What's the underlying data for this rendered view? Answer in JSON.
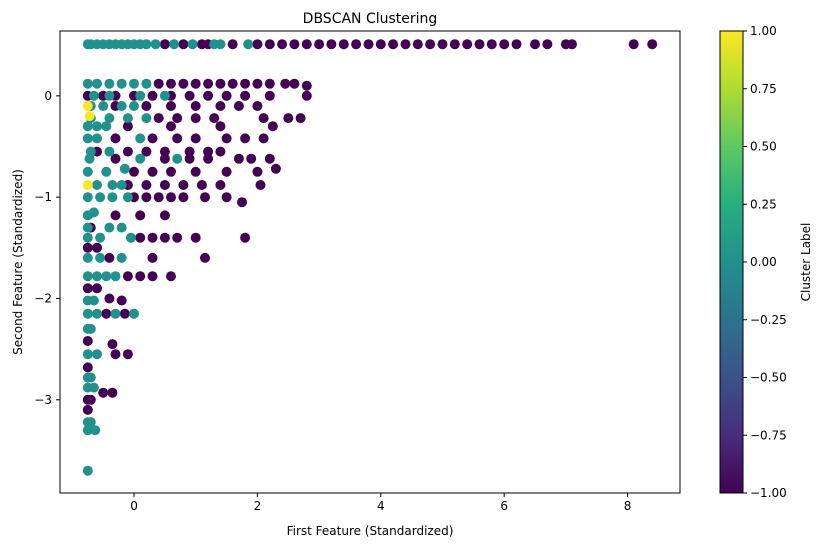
{
  "chart_data": {
    "type": "scatter",
    "title": "DBSCAN Clustering",
    "xlabel": "First Feature (Standardized)",
    "ylabel": "Second Feature (Standardized)",
    "xlim": [
      -1.2,
      8.85
    ],
    "ylim": [
      -3.92,
      0.64
    ],
    "xticks": [
      0,
      2,
      4,
      6,
      8
    ],
    "yticks": [
      0,
      -1,
      -2,
      -3
    ],
    "grid": false,
    "colorbar": {
      "label": "Cluster Label",
      "colormap": "viridis",
      "range": [
        -1.0,
        1.0
      ],
      "ticks": [
        1.0,
        0.75,
        0.5,
        0.25,
        0.0,
        -0.25,
        -0.5,
        -0.75,
        -1.0
      ],
      "tick_labels": [
        "1.00",
        "0.75",
        "0.50",
        "0.25",
        "0.00",
        "−0.25",
        "−0.50",
        "−0.75",
        "−1.00"
      ]
    },
    "colors": {
      "-1": "#440154",
      "0": "#21918c",
      "1": "#fde725"
    },
    "points": [
      [
        -0.75,
        0.51,
        0
      ],
      [
        -0.7,
        0.51,
        0
      ],
      [
        -0.6,
        0.51,
        0
      ],
      [
        -0.5,
        0.51,
        0
      ],
      [
        -0.4,
        0.51,
        0
      ],
      [
        -0.3,
        0.51,
        0
      ],
      [
        -0.2,
        0.51,
        0
      ],
      [
        -0.1,
        0.51,
        0
      ],
      [
        0.0,
        0.51,
        0
      ],
      [
        0.1,
        0.51,
        0
      ],
      [
        0.2,
        0.51,
        0
      ],
      [
        0.35,
        0.51,
        0
      ],
      [
        0.65,
        0.51,
        0
      ],
      [
        0.95,
        0.51,
        0
      ],
      [
        1.3,
        0.51,
        0
      ],
      [
        1.4,
        0.51,
        0
      ],
      [
        1.85,
        0.51,
        0
      ],
      [
        0.5,
        0.51,
        -1
      ],
      [
        0.8,
        0.51,
        -1
      ],
      [
        1.1,
        0.51,
        -1
      ],
      [
        1.2,
        0.51,
        -1
      ],
      [
        1.6,
        0.51,
        -1
      ],
      [
        2.0,
        0.51,
        -1
      ],
      [
        2.2,
        0.51,
        -1
      ],
      [
        2.4,
        0.51,
        -1
      ],
      [
        2.6,
        0.51,
        -1
      ],
      [
        2.8,
        0.51,
        -1
      ],
      [
        3.0,
        0.51,
        -1
      ],
      [
        3.2,
        0.51,
        -1
      ],
      [
        3.4,
        0.51,
        -1
      ],
      [
        3.6,
        0.51,
        -1
      ],
      [
        3.8,
        0.51,
        -1
      ],
      [
        4.0,
        0.51,
        -1
      ],
      [
        4.2,
        0.51,
        -1
      ],
      [
        4.4,
        0.51,
        -1
      ],
      [
        4.6,
        0.51,
        -1
      ],
      [
        4.8,
        0.51,
        -1
      ],
      [
        5.0,
        0.51,
        -1
      ],
      [
        5.2,
        0.51,
        -1
      ],
      [
        5.4,
        0.51,
        -1
      ],
      [
        5.6,
        0.51,
        -1
      ],
      [
        5.8,
        0.51,
        -1
      ],
      [
        6.0,
        0.51,
        -1
      ],
      [
        6.2,
        0.51,
        -1
      ],
      [
        6.5,
        0.51,
        -1
      ],
      [
        6.7,
        0.51,
        -1
      ],
      [
        7.0,
        0.51,
        -1
      ],
      [
        7.1,
        0.51,
        -1
      ],
      [
        8.1,
        0.51,
        -1
      ],
      [
        8.4,
        0.51,
        -1
      ],
      [
        -0.75,
        0.12,
        0
      ],
      [
        -0.6,
        0.12,
        0
      ],
      [
        -0.4,
        0.12,
        0
      ],
      [
        -0.2,
        0.12,
        0
      ],
      [
        0.0,
        0.12,
        0
      ],
      [
        0.2,
        0.12,
        0
      ],
      [
        0.4,
        0.12,
        -1
      ],
      [
        0.6,
        0.12,
        -1
      ],
      [
        0.8,
        0.12,
        -1
      ],
      [
        1.0,
        0.12,
        -1
      ],
      [
        1.2,
        0.12,
        -1
      ],
      [
        1.4,
        0.12,
        -1
      ],
      [
        1.6,
        0.12,
        -1
      ],
      [
        1.8,
        0.12,
        -1
      ],
      [
        2.0,
        0.12,
        -1
      ],
      [
        2.2,
        0.12,
        -1
      ],
      [
        2.45,
        0.12,
        -1
      ],
      [
        2.6,
        0.12,
        -1
      ],
      [
        2.8,
        0.1,
        -1
      ],
      [
        -0.75,
        0.0,
        -1
      ],
      [
        -0.5,
        0.0,
        -1
      ],
      [
        -0.3,
        0.0,
        -1
      ],
      [
        0.0,
        0.0,
        -1
      ],
      [
        0.3,
        0.0,
        -1
      ],
      [
        0.6,
        0.0,
        -1
      ],
      [
        0.9,
        0.0,
        -1
      ],
      [
        1.2,
        0.0,
        -1
      ],
      [
        1.5,
        0.0,
        -1
      ],
      [
        1.8,
        0.0,
        -1
      ],
      [
        2.2,
        0.0,
        -1
      ],
      [
        2.8,
        0.0,
        -1
      ],
      [
        -0.65,
        0.0,
        0
      ],
      [
        -0.4,
        0.0,
        0
      ],
      [
        0.1,
        0.0,
        0
      ],
      [
        0.5,
        0.0,
        0
      ],
      [
        -0.75,
        -0.1,
        1
      ],
      [
        -0.72,
        -0.2,
        1
      ],
      [
        -0.7,
        -0.1,
        0
      ],
      [
        -0.5,
        -0.1,
        0
      ],
      [
        -0.2,
        -0.1,
        0
      ],
      [
        0.0,
        -0.1,
        0
      ],
      [
        -0.3,
        -0.1,
        -1
      ],
      [
        0.2,
        -0.1,
        -1
      ],
      [
        0.6,
        -0.1,
        -1
      ],
      [
        1.0,
        -0.1,
        -1
      ],
      [
        1.4,
        -0.1,
        -1
      ],
      [
        1.7,
        -0.1,
        -1
      ],
      [
        2.0,
        -0.1,
        -1
      ],
      [
        -0.7,
        -0.22,
        0
      ],
      [
        -0.4,
        -0.22,
        0
      ],
      [
        -0.1,
        -0.22,
        0
      ],
      [
        0.2,
        -0.22,
        0
      ],
      [
        0.4,
        -0.22,
        -1
      ],
      [
        0.7,
        -0.22,
        -1
      ],
      [
        1.0,
        -0.22,
        -1
      ],
      [
        1.3,
        -0.22,
        -1
      ],
      [
        2.1,
        -0.22,
        -1
      ],
      [
        2.5,
        -0.22,
        -1
      ],
      [
        2.7,
        -0.22,
        -1
      ],
      [
        -0.75,
        -0.3,
        0
      ],
      [
        -0.6,
        -0.3,
        0
      ],
      [
        -0.45,
        -0.3,
        0
      ],
      [
        -0.1,
        -0.3,
        -1
      ],
      [
        0.6,
        -0.3,
        -1
      ],
      [
        1.4,
        -0.3,
        -1
      ],
      [
        2.25,
        -0.3,
        -1
      ],
      [
        -0.75,
        -0.42,
        0
      ],
      [
        -0.6,
        -0.42,
        0
      ],
      [
        0.1,
        -0.42,
        0
      ],
      [
        -0.3,
        -0.42,
        -1
      ],
      [
        0.3,
        -0.42,
        -1
      ],
      [
        0.7,
        -0.42,
        -1
      ],
      [
        1.0,
        -0.42,
        -1
      ],
      [
        1.5,
        -0.42,
        -1
      ],
      [
        1.8,
        -0.42,
        -1
      ],
      [
        2.1,
        -0.42,
        -1
      ],
      [
        -0.7,
        -0.55,
        0
      ],
      [
        -0.4,
        -0.55,
        0
      ],
      [
        -0.6,
        -0.55,
        -1
      ],
      [
        -0.1,
        -0.55,
        -1
      ],
      [
        0.2,
        -0.55,
        -1
      ],
      [
        0.5,
        -0.55,
        -1
      ],
      [
        0.9,
        -0.55,
        -1
      ],
      [
        1.2,
        -0.55,
        -1
      ],
      [
        1.4,
        -0.55,
        -1
      ],
      [
        -0.72,
        -0.62,
        0
      ],
      [
        0.1,
        -0.62,
        0
      ],
      [
        0.7,
        -0.62,
        0
      ],
      [
        -0.3,
        -0.62,
        -1
      ],
      [
        0.5,
        -0.62,
        -1
      ],
      [
        0.9,
        -0.62,
        -1
      ],
      [
        1.2,
        -0.62,
        -1
      ],
      [
        1.7,
        -0.62,
        -1
      ],
      [
        1.9,
        -0.62,
        -1
      ],
      [
        2.2,
        -0.62,
        -1
      ],
      [
        -0.75,
        -0.75,
        0
      ],
      [
        -0.45,
        -0.75,
        0
      ],
      [
        -0.15,
        -0.72,
        0
      ],
      [
        0.0,
        -0.75,
        -1
      ],
      [
        0.3,
        -0.75,
        -1
      ],
      [
        0.6,
        -0.75,
        -1
      ],
      [
        1.0,
        -0.75,
        -1
      ],
      [
        1.5,
        -0.75,
        -1
      ],
      [
        2.0,
        -0.75,
        -1
      ],
      [
        2.3,
        -0.72,
        -1
      ],
      [
        -0.75,
        -0.88,
        1
      ],
      [
        -0.6,
        -0.88,
        0
      ],
      [
        -0.35,
        -0.88,
        0
      ],
      [
        -0.2,
        -0.88,
        0
      ],
      [
        -0.1,
        -0.88,
        -1
      ],
      [
        0.2,
        -0.88,
        -1
      ],
      [
        0.5,
        -0.88,
        -1
      ],
      [
        0.8,
        -0.88,
        -1
      ],
      [
        1.1,
        -0.88,
        -1
      ],
      [
        1.4,
        -0.88,
        -1
      ],
      [
        2.05,
        -0.88,
        -1
      ],
      [
        -0.75,
        -1.0,
        0
      ],
      [
        -0.55,
        -1.0,
        0
      ],
      [
        -0.35,
        -1.0,
        0
      ],
      [
        -0.1,
        -1.0,
        0
      ],
      [
        0.0,
        -1.0,
        -1
      ],
      [
        0.2,
        -1.0,
        -1
      ],
      [
        0.4,
        -1.0,
        -1
      ],
      [
        0.6,
        -1.0,
        -1
      ],
      [
        0.8,
        -1.0,
        -1
      ],
      [
        1.5,
        -1.0,
        -1
      ],
      [
        1.75,
        -1.05,
        -1
      ],
      [
        1.15,
        -1.0,
        -1
      ],
      [
        -0.75,
        -1.18,
        0
      ],
      [
        -0.65,
        -1.15,
        0
      ],
      [
        -0.3,
        -1.18,
        -1
      ],
      [
        0.1,
        -1.18,
        -1
      ],
      [
        0.5,
        -1.18,
        -1
      ],
      [
        -0.75,
        -1.3,
        0
      ],
      [
        -0.4,
        -1.3,
        0
      ],
      [
        -0.2,
        -1.3,
        0
      ],
      [
        -0.7,
        -1.3,
        -1
      ],
      [
        -0.75,
        -1.4,
        0
      ],
      [
        -0.55,
        -1.4,
        0
      ],
      [
        -0.05,
        -1.4,
        0
      ],
      [
        0.1,
        -1.4,
        -1
      ],
      [
        0.3,
        -1.4,
        -1
      ],
      [
        0.5,
        -1.4,
        -1
      ],
      [
        0.7,
        -1.4,
        -1
      ],
      [
        1.0,
        -1.4,
        -1
      ],
      [
        1.8,
        -1.4,
        -1
      ],
      [
        -0.75,
        -1.5,
        -1
      ],
      [
        -0.6,
        -1.5,
        -1
      ],
      [
        -0.75,
        -1.6,
        0
      ],
      [
        -0.55,
        -1.6,
        0
      ],
      [
        -0.2,
        -1.6,
        0
      ],
      [
        -0.4,
        -1.6,
        -1
      ],
      [
        0.3,
        -1.6,
        -1
      ],
      [
        1.15,
        -1.6,
        -1
      ],
      [
        -0.75,
        -1.78,
        0
      ],
      [
        -0.6,
        -1.78,
        0
      ],
      [
        -0.45,
        -1.78,
        0
      ],
      [
        -0.3,
        -1.78,
        0
      ],
      [
        -0.1,
        -1.78,
        -1
      ],
      [
        0.1,
        -1.78,
        -1
      ],
      [
        0.3,
        -1.78,
        -1
      ],
      [
        0.6,
        -1.78,
        -1
      ],
      [
        -0.75,
        -1.9,
        -1
      ],
      [
        -0.6,
        -1.9,
        -1
      ],
      [
        -0.75,
        -2.02,
        0
      ],
      [
        -0.65,
        -2.02,
        0
      ],
      [
        -0.4,
        -2.0,
        -1
      ],
      [
        -0.2,
        -2.02,
        -1
      ],
      [
        -0.75,
        -2.15,
        0
      ],
      [
        -0.6,
        -2.15,
        0
      ],
      [
        -0.3,
        -2.15,
        0
      ],
      [
        0.0,
        -2.15,
        0
      ],
      [
        -0.45,
        -2.15,
        -1
      ],
      [
        -0.15,
        -2.15,
        -1
      ],
      [
        -0.75,
        -2.3,
        0
      ],
      [
        -0.7,
        -2.3,
        0
      ],
      [
        -0.75,
        -2.42,
        -1
      ],
      [
        -0.35,
        -2.45,
        -1
      ],
      [
        -0.75,
        -2.55,
        0
      ],
      [
        -0.6,
        -2.55,
        0
      ],
      [
        -0.3,
        -2.55,
        -1
      ],
      [
        -0.1,
        -2.55,
        -1
      ],
      [
        -0.75,
        -2.68,
        -1
      ],
      [
        -0.75,
        -2.78,
        0
      ],
      [
        -0.7,
        -2.78,
        0
      ],
      [
        -0.75,
        -2.88,
        0
      ],
      [
        -0.65,
        -2.88,
        0
      ],
      [
        -0.5,
        -2.93,
        -1
      ],
      [
        -0.35,
        -2.93,
        -1
      ],
      [
        -0.75,
        -3.0,
        -1
      ],
      [
        -0.7,
        -3.0,
        -1
      ],
      [
        -0.75,
        -3.1,
        -1
      ],
      [
        -0.75,
        -3.22,
        0
      ],
      [
        -0.7,
        -3.22,
        0
      ],
      [
        -0.75,
        -3.3,
        0
      ],
      [
        -0.63,
        -3.3,
        0
      ],
      [
        -0.75,
        -3.7,
        0
      ]
    ]
  }
}
